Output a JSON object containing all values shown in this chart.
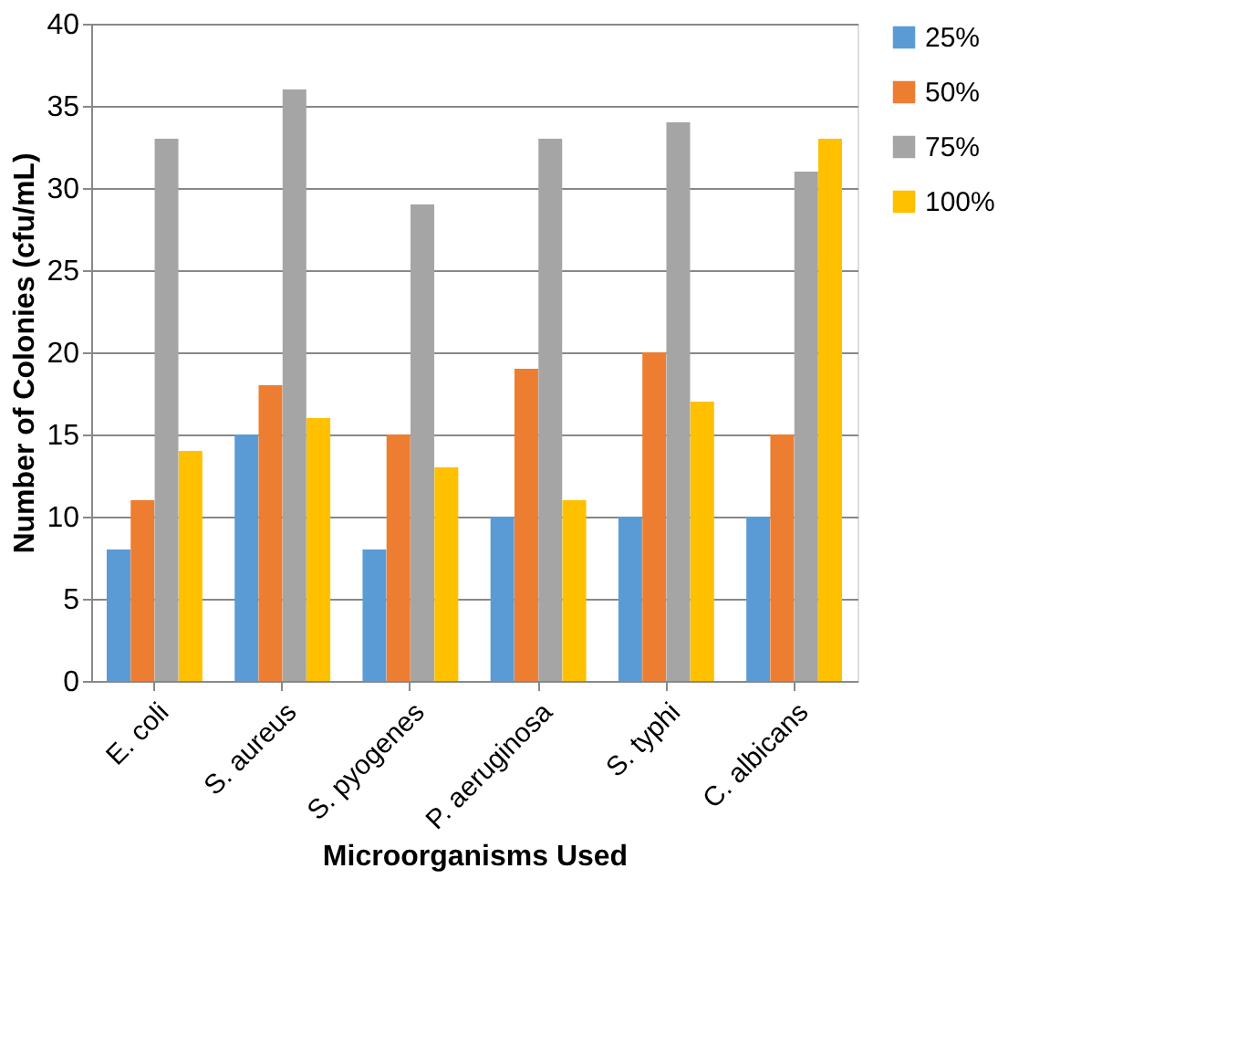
{
  "chart_data": {
    "type": "bar",
    "xlabel": "Microorganisms Used",
    "ylabel": "Number of Colonies (cfu/mL)",
    "categories": [
      "E. coli",
      "S. aureus",
      "S. pyogenes",
      "P. aeruginosa",
      "S. typhi",
      "C. albicans"
    ],
    "series": [
      {
        "name": "25%",
        "color": "#5b9bd5",
        "values": [
          8,
          15,
          8,
          10,
          10,
          10
        ]
      },
      {
        "name": "50%",
        "color": "#ed7d31",
        "values": [
          11,
          18,
          15,
          19,
          20,
          15
        ]
      },
      {
        "name": "75%",
        "color": "#a5a5a5",
        "values": [
          33,
          36,
          29,
          33,
          34,
          31
        ]
      },
      {
        "name": "100%",
        "color": "#ffc000",
        "values": [
          14,
          16,
          13,
          11,
          17,
          33
        ]
      }
    ],
    "ylim": [
      0,
      40
    ],
    "yticks": [
      0,
      5,
      10,
      15,
      20,
      25,
      30,
      35,
      40
    ],
    "grid": "y",
    "legend": "right"
  }
}
